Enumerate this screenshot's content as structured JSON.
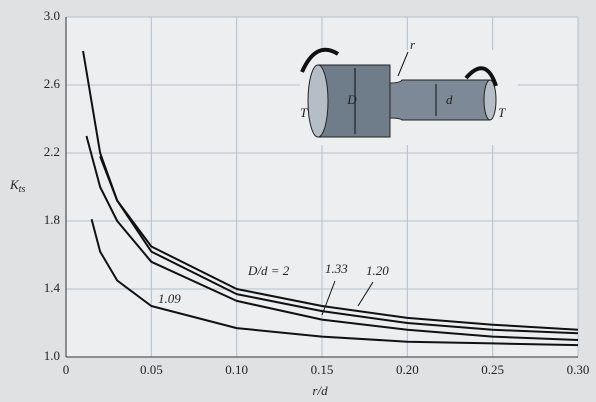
{
  "chart_data": {
    "type": "line",
    "x_label": "r/d",
    "y_label": "K",
    "y_label_sub": "ts",
    "xlim": [
      0,
      0.3
    ],
    "ylim": [
      1.0,
      3.0
    ],
    "xticks": [
      0,
      0.05,
      {
        "value": 0.1,
        "label": "0.10"
      },
      0.15,
      {
        "value": 0.2,
        "label": "0.20"
      },
      0.25,
      {
        "value": 0.3,
        "label": "0.30"
      }
    ],
    "yticks": [
      {
        "value": 1.0,
        "label": "1.0"
      },
      1.4,
      1.8,
      2.2,
      2.6,
      {
        "value": 3.0,
        "label": "3.0"
      }
    ],
    "grid": true,
    "series": [
      {
        "name": "D/d = 2",
        "color": "#111111",
        "x": [
          0.01,
          0.02,
          0.03,
          0.05,
          0.1,
          0.15,
          0.2,
          0.25,
          0.3
        ],
        "values": [
          2.8,
          2.2,
          1.92,
          1.65,
          1.4,
          1.3,
          1.23,
          1.19,
          1.16
        ]
      },
      {
        "name": "1.33",
        "color": "#111111",
        "x": [
          0.02,
          0.03,
          0.05,
          0.1,
          0.15,
          0.2,
          0.25,
          0.3
        ],
        "values": [
          2.18,
          1.92,
          1.62,
          1.37,
          1.27,
          1.2,
          1.16,
          1.14
        ]
      },
      {
        "name": "1.20",
        "color": "#111111",
        "x": [
          0.012,
          0.02,
          0.03,
          0.05,
          0.1,
          0.15,
          0.2,
          0.25,
          0.3
        ],
        "values": [
          2.3,
          2.0,
          1.8,
          1.56,
          1.33,
          1.22,
          1.16,
          1.12,
          1.1
        ]
      },
      {
        "name": "1.09",
        "color": "#111111",
        "x": [
          0.015,
          0.02,
          0.03,
          0.05,
          0.1,
          0.15,
          0.2,
          0.25,
          0.3
        ],
        "values": [
          1.81,
          1.62,
          1.45,
          1.3,
          1.17,
          1.12,
          1.09,
          1.08,
          1.07
        ]
      }
    ],
    "inset": {
      "torque_left": "T",
      "torque_right": "T",
      "big_diameter": "D",
      "small_diameter": "d",
      "fillet": "r"
    }
  }
}
